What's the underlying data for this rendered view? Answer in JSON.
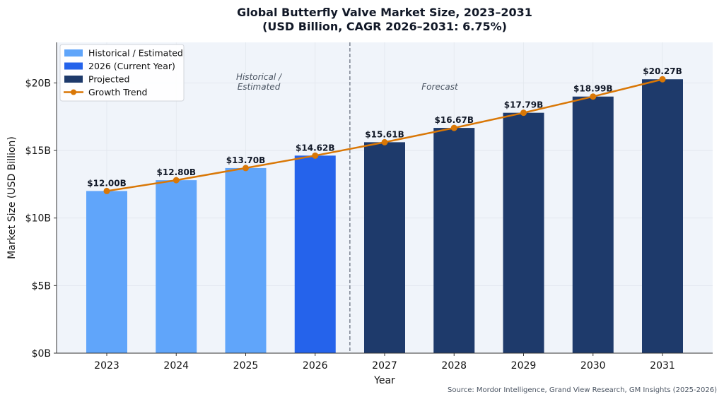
{
  "chart_data": {
    "type": "bar",
    "title": "Global Butterfly Valve Market Size, 2023–2031",
    "subtitle": "(USD Billion, CAGR 2026–2031: 6.75%)",
    "xlabel": "Year",
    "ylabel": "Market Size (USD Billion)",
    "categories": [
      "2023",
      "2024",
      "2025",
      "2026",
      "2027",
      "2028",
      "2029",
      "2030",
      "2031"
    ],
    "values": [
      12.0,
      12.8,
      13.7,
      14.62,
      15.61,
      16.67,
      17.79,
      18.99,
      20.27
    ],
    "value_labels": [
      "$12.00B",
      "$12.80B",
      "$13.70B",
      "$14.62B",
      "$15.61B",
      "$16.67B",
      "$17.79B",
      "$18.99B",
      "$20.27B"
    ],
    "bar_groups": [
      "historical",
      "historical",
      "historical",
      "current",
      "projected",
      "projected",
      "projected",
      "projected",
      "projected"
    ],
    "ylim": [
      0,
      23
    ],
    "yticks": [
      0,
      5,
      10,
      15,
      20
    ],
    "ytick_labels": [
      "$0B",
      "$5B",
      "$10B",
      "$15B",
      "$20B"
    ],
    "grid": true,
    "legend_placement": "top-left",
    "legend": [
      {
        "key": "historical",
        "label": "Historical / Estimated",
        "type": "bar"
      },
      {
        "key": "current",
        "label": "2026 (Current Year)",
        "type": "bar"
      },
      {
        "key": "projected",
        "label": "Projected",
        "type": "bar"
      },
      {
        "key": "trend",
        "label": "Growth Trend",
        "type": "line"
      }
    ],
    "divider_between": [
      "2026",
      "2027"
    ],
    "annotations": {
      "historical": "Historical /\nEstimated",
      "forecast": "Forecast"
    },
    "colors": {
      "historical": "#60a5fa",
      "current": "#2563eb",
      "projected": "#1e3a6b",
      "trend": "#d97706",
      "plot_bg": "#f0f4fa",
      "title": "#111827"
    },
    "source": "Source: Mordor Intelligence, Grand View Research, GM Insights (2025-2026)"
  }
}
